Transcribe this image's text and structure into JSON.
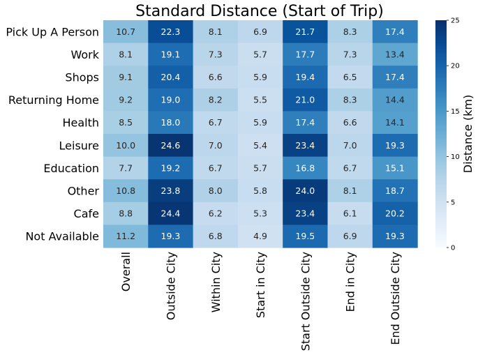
{
  "chart_data": {
    "type": "heatmap",
    "title": "Standard Distance (Start of Trip)",
    "rows": [
      "Pick Up A Person",
      "Work",
      "Shops",
      "Returning Home",
      "Health",
      "Leisure",
      "Education",
      "Other",
      "Cafe",
      "Not Available"
    ],
    "columns": [
      "Overall",
      "Outside City",
      "Within City",
      "Start in City",
      "Start Outside City",
      "End in City",
      "End Outside City"
    ],
    "values": [
      [
        10.7,
        22.3,
        8.1,
        6.9,
        21.7,
        8.3,
        17.4
      ],
      [
        8.1,
        19.1,
        7.3,
        5.7,
        17.7,
        7.3,
        13.4
      ],
      [
        9.1,
        20.4,
        6.6,
        5.9,
        19.4,
        6.5,
        17.4
      ],
      [
        9.2,
        19.0,
        8.2,
        5.5,
        21.0,
        8.3,
        14.4
      ],
      [
        8.5,
        18.0,
        6.7,
        5.9,
        17.4,
        6.6,
        14.1
      ],
      [
        10.0,
        24.6,
        7.0,
        5.4,
        23.4,
        7.0,
        19.3
      ],
      [
        7.7,
        19.2,
        6.7,
        5.7,
        16.8,
        6.7,
        15.1
      ],
      [
        10.8,
        23.8,
        8.0,
        5.8,
        24.0,
        8.1,
        18.7
      ],
      [
        8.8,
        24.4,
        6.2,
        5.3,
        23.4,
        6.1,
        20.2
      ],
      [
        11.2,
        19.3,
        6.8,
        4.9,
        19.5,
        6.9,
        19.3
      ]
    ],
    "value_format": "0.0",
    "colorbar": {
      "label": "Distance (km)",
      "min": 0,
      "max": 25,
      "ticks": [
        0,
        5,
        10,
        15,
        20,
        25
      ],
      "colormap": "Blues"
    }
  }
}
